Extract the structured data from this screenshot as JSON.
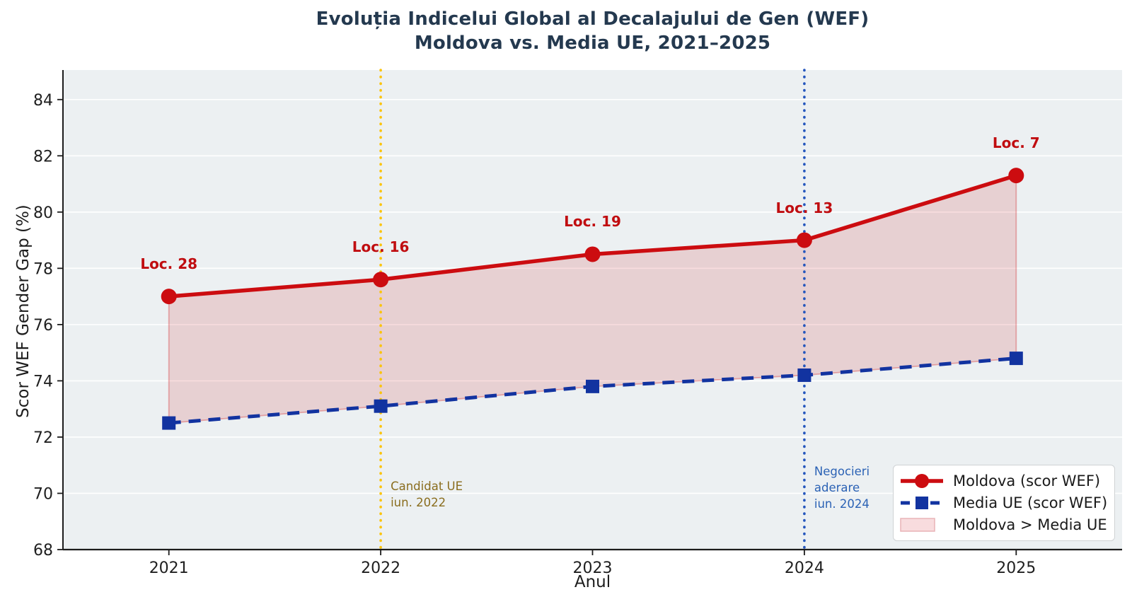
{
  "chart_data": {
    "type": "line",
    "title": "Evoluția Indicelui Global al Decalajului de Gen (WEF)",
    "subtitle": "Moldova vs. Media UE, 2021–2025",
    "xlabel": "Anul",
    "ylabel": "Scor WEF Gender Gap (%)",
    "x": [
      2021,
      2022,
      2023,
      2024,
      2025
    ],
    "xlim": [
      2020.5,
      2025.5
    ],
    "ylim": [
      68,
      85.05
    ],
    "yticks": [
      68,
      70,
      72,
      74,
      76,
      78,
      80,
      82,
      84
    ],
    "xticks": [
      2021,
      2022,
      2023,
      2024,
      2025
    ],
    "grid": "horizontal-only, white lines on light gray panel",
    "legend_position": "lower right",
    "series": [
      {
        "name": "Moldova (scor WEF)",
        "color": "#cc0c10",
        "line_style": "solid",
        "marker": "circle",
        "values": [
          77.0,
          77.6,
          78.5,
          79.0,
          81.3
        ]
      },
      {
        "name": "Media UE (scor WEF)",
        "color": "#1233a0",
        "line_style": "dashed",
        "marker": "square",
        "values": [
          72.5,
          73.1,
          73.8,
          74.2,
          74.8
        ]
      }
    ],
    "fill_between": {
      "label": "Moldova > Media UE",
      "color": "rgba(204,14,18,0.14)",
      "edge_color": "rgba(204,14,18,0.30)"
    },
    "annotations": [
      {
        "x": 2021,
        "label": "Loc. 28"
      },
      {
        "x": 2022,
        "label": "Loc. 16"
      },
      {
        "x": 2023,
        "label": "Loc. 19"
      },
      {
        "x": 2024,
        "label": "Loc. 13"
      },
      {
        "x": 2025,
        "label": "Loc. 7"
      }
    ],
    "events": [
      {
        "x": 2022,
        "text": "Candidat UE\niun. 2022",
        "line_color": "#fbc40c",
        "text_color": "#8a6d1e"
      },
      {
        "x": 2024,
        "text": "Negocieri\naderare\niun. 2024",
        "line_color": "#2456bd",
        "text_color": "#2b62b5"
      }
    ],
    "colors": {
      "panel_background": "#ecf0f2",
      "figure_background": "#ffffff",
      "gridline": "#ffffff",
      "spine": "#1c1c1c",
      "tick_label": "#1f1f1f",
      "title": "#24394f",
      "annotation": "#c00d10"
    }
  }
}
